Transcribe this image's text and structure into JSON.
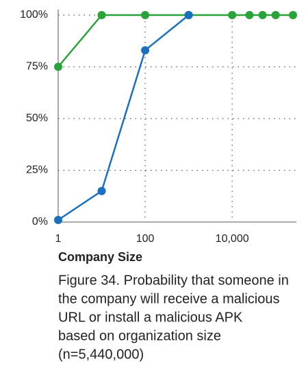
{
  "chart_data": {
    "type": "line",
    "xlabel": "Company Size",
    "caption": [
      "Figure 34. Probability that someone in",
      "the company will receive a malicious",
      "URL or install a malicious APK",
      "based on organization size",
      "(n=5,440,000)"
    ],
    "xscale": "log",
    "xlim": [
      1,
      300000
    ],
    "xticks": [
      1,
      100,
      {
        "value": 10000,
        "label": "10,000"
      }
    ],
    "ylim": [
      0,
      100
    ],
    "yticks": [
      {
        "value": 0,
        "label": "0%"
      },
      {
        "value": 25,
        "label": "25%"
      },
      {
        "value": 50,
        "label": "50%"
      },
      {
        "value": 75,
        "label": "75%"
      },
      {
        "value": 100,
        "label": "100%"
      }
    ],
    "grid": true,
    "series": [
      {
        "color": "#2aa33a",
        "x": [
          1,
          10,
          100,
          1000,
          10000,
          25000,
          50000,
          100000,
          250000
        ],
        "values": [
          75,
          100,
          100,
          100,
          100,
          100,
          100,
          100,
          100
        ]
      },
      {
        "color": "#1a6fbf",
        "x": [
          1,
          10,
          100,
          1000
        ],
        "values": [
          1,
          15,
          83,
          100
        ]
      }
    ]
  }
}
